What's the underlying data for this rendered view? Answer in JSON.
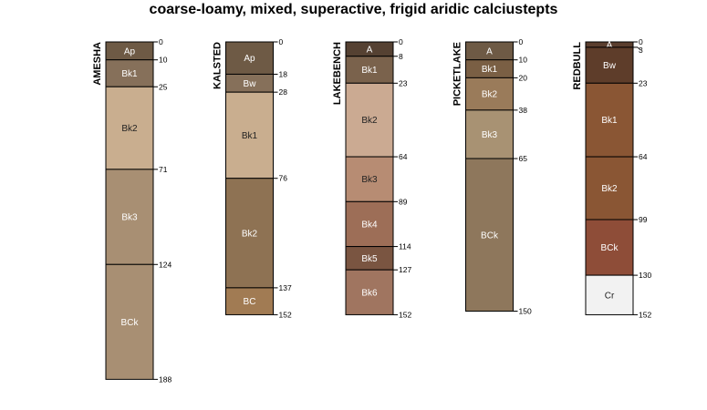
{
  "chart_data": {
    "type": "soil-profile-sketch",
    "title": "coarse-loamy, mixed, superactive, frigid aridic calciustepts",
    "depth_unit": "cm",
    "profiles": [
      {
        "name": "AMESHA",
        "horizons": [
          {
            "name": "Ap",
            "top": 0,
            "bottom": 10,
            "color": "#6E5A45"
          },
          {
            "name": "Bk1",
            "top": 10,
            "bottom": 25,
            "color": "#86705A"
          },
          {
            "name": "Bk2",
            "top": 25,
            "bottom": 71,
            "color": "#C9AE8F"
          },
          {
            "name": "Bk3",
            "top": 71,
            "bottom": 124,
            "color": "#A88F73"
          },
          {
            "name": "BCk",
            "top": 124,
            "bottom": 188,
            "color": "#A88F73"
          }
        ]
      },
      {
        "name": "KALSTED",
        "horizons": [
          {
            "name": "Ap",
            "top": 0,
            "bottom": 18,
            "color": "#6E5A45"
          },
          {
            "name": "Bw",
            "top": 18,
            "bottom": 28,
            "color": "#86705A"
          },
          {
            "name": "Bk1",
            "top": 28,
            "bottom": 76,
            "color": "#C9AE8F"
          },
          {
            "name": "Bk2",
            "top": 76,
            "bottom": 137,
            "color": "#8E7253"
          },
          {
            "name": "BC",
            "top": 137,
            "bottom": 152,
            "color": "#A17B53"
          }
        ]
      },
      {
        "name": "LAKEBENCH",
        "horizons": [
          {
            "name": "A",
            "top": 0,
            "bottom": 8,
            "color": "#554132"
          },
          {
            "name": "Bk1",
            "top": 8,
            "bottom": 23,
            "color": "#7A624C"
          },
          {
            "name": "Bk2",
            "top": 23,
            "bottom": 64,
            "color": "#CBAA92"
          },
          {
            "name": "Bk3",
            "top": 64,
            "bottom": 89,
            "color": "#B78C73"
          },
          {
            "name": "Bk4",
            "top": 89,
            "bottom": 114,
            "color": "#9D6E57"
          },
          {
            "name": "Bk5",
            "top": 114,
            "bottom": 127,
            "color": "#7A5541"
          },
          {
            "name": "Bk6",
            "top": 127,
            "bottom": 152,
            "color": "#A07560"
          }
        ]
      },
      {
        "name": "PICKETLAKE",
        "horizons": [
          {
            "name": "A",
            "top": 0,
            "bottom": 10,
            "color": "#6E5A45"
          },
          {
            "name": "Bk1",
            "top": 10,
            "bottom": 20,
            "color": "#7A5F44"
          },
          {
            "name": "Bk2",
            "top": 20,
            "bottom": 38,
            "color": "#9A7B5A"
          },
          {
            "name": "Bk3",
            "top": 38,
            "bottom": 65,
            "color": "#A89273"
          },
          {
            "name": "BCk",
            "top": 65,
            "bottom": 150,
            "color": "#8E775C"
          }
        ]
      },
      {
        "name": "REDBULL",
        "horizons": [
          {
            "name": "A",
            "top": 0,
            "bottom": 3,
            "color": "#5A3E2E"
          },
          {
            "name": "Bw",
            "top": 3,
            "bottom": 23,
            "color": "#5E3D2A"
          },
          {
            "name": "Bk1",
            "top": 23,
            "bottom": 64,
            "color": "#8A5634"
          },
          {
            "name": "Bk2",
            "top": 64,
            "bottom": 99,
            "color": "#8A5634"
          },
          {
            "name": "BCk",
            "top": 99,
            "bottom": 130,
            "color": "#8E4D38"
          },
          {
            "name": "Cr",
            "top": 130,
            "bottom": 152,
            "color": "#F2F2F2"
          }
        ]
      }
    ]
  }
}
